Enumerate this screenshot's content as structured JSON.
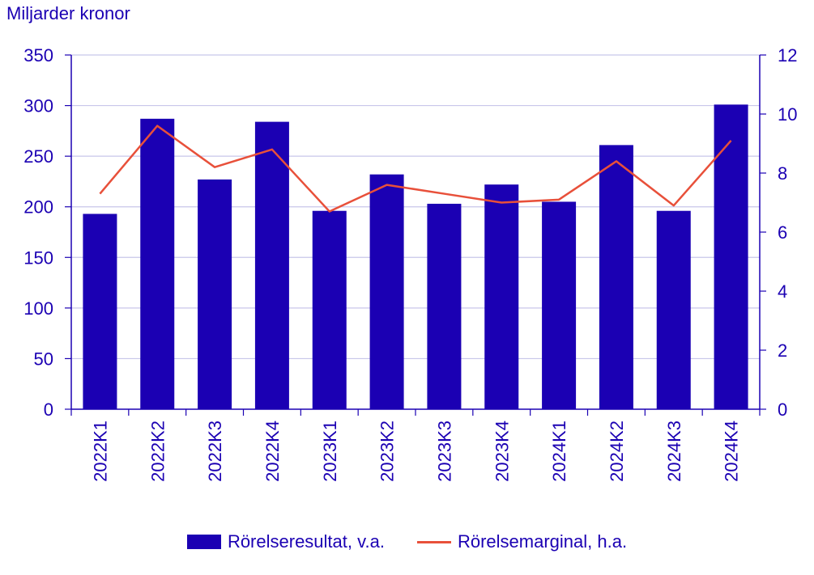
{
  "chart_data": {
    "type": "bar+line",
    "ylabel": "Miljarder kronor",
    "categories": [
      "2022K1",
      "2022K2",
      "2022K3",
      "2022K4",
      "2023K1",
      "2023K2",
      "2023K3",
      "2023K4",
      "2024K1",
      "2024K2",
      "2024K3",
      "2024K4"
    ],
    "series": [
      {
        "name": "Rörelseresultat, v.a.",
        "type": "bar",
        "axis": "left",
        "color": "#1b00b3",
        "values": [
          193,
          287,
          227,
          284,
          196,
          232,
          203,
          222,
          205,
          261,
          196,
          301
        ]
      },
      {
        "name": "Rörelsemarginal, h.a.",
        "type": "line",
        "axis": "right",
        "color": "#e8503a",
        "values": [
          7.3,
          9.6,
          8.2,
          8.8,
          6.7,
          7.6,
          7.3,
          7.0,
          7.1,
          8.4,
          6.9,
          9.1
        ]
      }
    ],
    "y_left": {
      "min": 0,
      "max": 350,
      "ticks": [
        "0",
        "50",
        "100",
        "150",
        "200",
        "250",
        "300",
        "350"
      ]
    },
    "y_right": {
      "min": 0,
      "max": 12,
      "ticks": [
        "0",
        "2",
        "4",
        "6",
        "8",
        "10",
        "12"
      ]
    },
    "grid": true,
    "legend_position": "bottom"
  }
}
